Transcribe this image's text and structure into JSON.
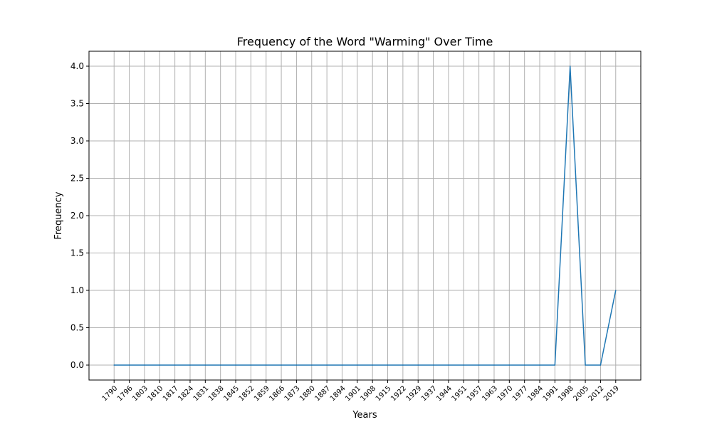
{
  "chart_data": {
    "type": "line",
    "title": "Frequency of the Word \"Warming\" Over Time",
    "xlabel": "Years",
    "ylabel": "Frequency",
    "x": [
      "1790",
      "1796",
      "1803",
      "1810",
      "1817",
      "1824",
      "1831",
      "1838",
      "1845",
      "1852",
      "1859",
      "1866",
      "1873",
      "1880",
      "1887",
      "1894",
      "1901",
      "1908",
      "1915",
      "1922",
      "1929",
      "1937",
      "1944",
      "1951",
      "1957",
      "1963",
      "1970",
      "1977",
      "1984",
      "1991",
      "1998",
      "2005",
      "2012",
      "2019"
    ],
    "series": [
      {
        "values": [
          0,
          0,
          0,
          0,
          0,
          0,
          0,
          0,
          0,
          0,
          0,
          0,
          0,
          0,
          0,
          0,
          0,
          0,
          0,
          0,
          0,
          0,
          0,
          0,
          0,
          0,
          0,
          0,
          0,
          0,
          4,
          0,
          0,
          1
        ],
        "color": "#1f77b4"
      }
    ],
    "yticks": [
      "0.0",
      "0.5",
      "1.0",
      "1.5",
      "2.0",
      "2.5",
      "3.0",
      "3.5",
      "4.0"
    ],
    "ylim": [
      -0.2,
      4.2
    ],
    "grid": true,
    "legend": "none"
  }
}
